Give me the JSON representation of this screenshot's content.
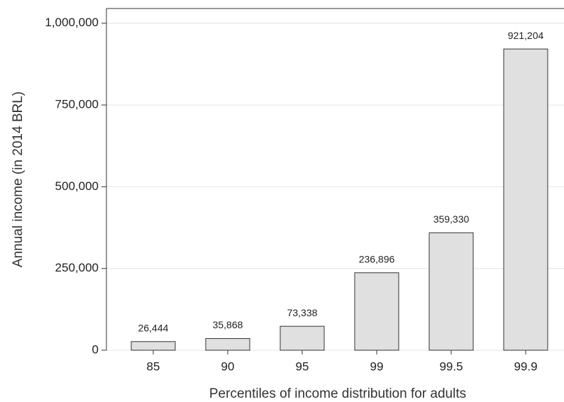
{
  "chart_data": {
    "type": "bar",
    "x_label": "Percentiles of income distribution for adults",
    "y_label": "Annual income (in 2014 BRL)",
    "categories": [
      "85",
      "90",
      "95",
      "99",
      "99.5",
      "99.9"
    ],
    "values": [
      26444,
      35868,
      73338,
      236896,
      359330,
      921204
    ],
    "value_labels": [
      "26,444",
      "35,868",
      "73,338",
      "236,896",
      "359,330",
      "921,204"
    ],
    "color": "#e0e0e0",
    "ylim": [
      0,
      1045000
    ],
    "yticks": [
      0,
      {
        "value": 250000,
        "label": "250,000"
      },
      {
        "value": 500000,
        "label": "500,000"
      },
      {
        "value": 750000,
        "label": "750,000"
      },
      {
        "value": 1000000,
        "label": "1,000,000"
      }
    ],
    "grid": true
  }
}
